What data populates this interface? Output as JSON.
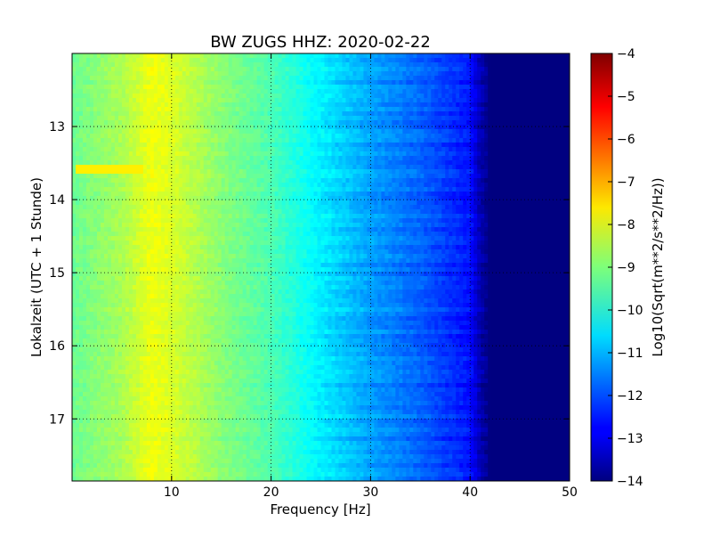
{
  "chart_data": {
    "type": "heatmap",
    "title": "BW ZUGS HHZ: 2020-02-22",
    "xlabel": "Frequency [Hz]",
    "ylabel": "Lokalzeit (UTC + 1 Stunde)",
    "xlim": [
      0,
      50
    ],
    "ylim": [
      12.0,
      17.85
    ],
    "y_inverted": true,
    "xticks": [
      10,
      20,
      30,
      40,
      50
    ],
    "yticks": [
      13,
      14,
      15,
      16,
      17
    ],
    "grid": true,
    "colormap": "jet",
    "colorbar": {
      "label": "Log10(Sqrt(m**2/s**2/Hz))",
      "range": [
        -14,
        -4
      ],
      "ticks": [
        -4,
        -5,
        -6,
        -7,
        -8,
        -9,
        -10,
        -11,
        -12,
        -13,
        -14
      ]
    },
    "spectrum_profile": {
      "frequency_hz": [
        0,
        5,
        8,
        10,
        15,
        20,
        25,
        30,
        35,
        40,
        41,
        42,
        50
      ],
      "log10_amplitude": [
        -9.2,
        -8.6,
        -7.9,
        -8.1,
        -8.9,
        -9.5,
        -10.4,
        -11.2,
        -11.8,
        -12.6,
        -13.5,
        -14,
        -14
      ]
    },
    "annotations": [
      {
        "time_range": [
          13.55,
          13.62
        ],
        "frequency_range": [
          0.5,
          7
        ],
        "log10_amplitude": -7.6
      }
    ]
  }
}
